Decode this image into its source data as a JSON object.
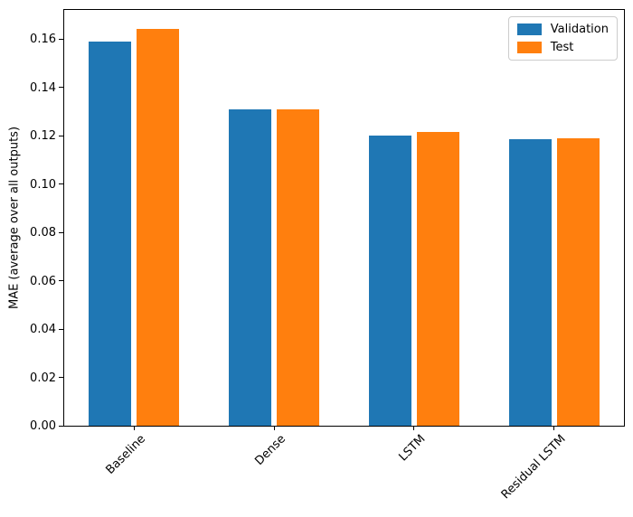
{
  "chart_data": {
    "type": "bar",
    "title": "",
    "xlabel": "",
    "ylabel": "MAE (average over all outputs)",
    "categories": [
      "Baseline",
      "Dense",
      "LSTM",
      "Residual LSTM"
    ],
    "series": [
      {
        "name": "Validation",
        "color": "#1f77b4",
        "values": [
          0.159,
          0.131,
          0.12,
          0.1185
        ]
      },
      {
        "name": "Test",
        "color": "#ff7f0e",
        "values": [
          0.164,
          0.131,
          0.1215,
          0.119
        ]
      }
    ],
    "ylim": [
      0,
      0.172
    ],
    "yticks": [
      "0.00",
      "0.02",
      "0.04",
      "0.06",
      "0.08",
      "0.10",
      "0.12",
      "0.14",
      "0.16"
    ],
    "xtick_rotation_deg": 45,
    "grid": false,
    "legend_position": "upper right",
    "axis_color": "#000000",
    "legend_border_color": "#cccccc",
    "background": "#ffffff"
  }
}
